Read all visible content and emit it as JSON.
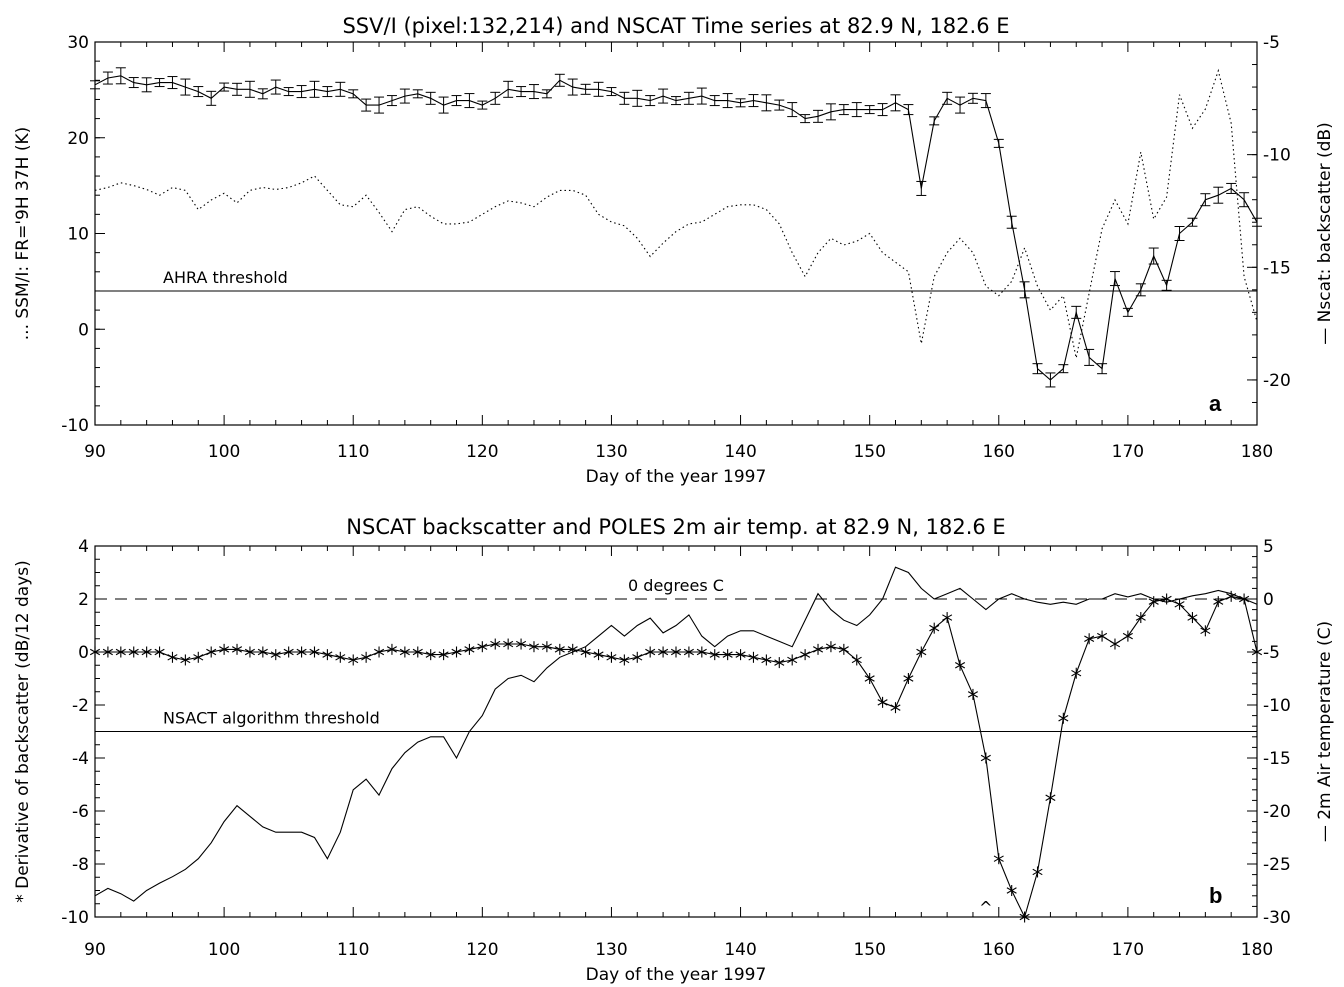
{
  "chart_data": [
    {
      "type": "line",
      "panel_letter": "a",
      "title": "SSV/I (pixel:132,214) and NSCAT Time series at 82.9 N, 182.6 E",
      "xlabel": "Day of the year 1997",
      "ylabel_left": "... SSM/I: FR='9H 37H (K)",
      "ylabel_right": "— Nscat: backscatter (dB)",
      "xlim": [
        90,
        180
      ],
      "ylim_left": [
        -10,
        30
      ],
      "ylim_right": [
        -22,
        -5
      ],
      "x_ticks": [
        "90",
        "100",
        "110",
        "120",
        "130",
        "140",
        "150",
        "160",
        "170",
        "180"
      ],
      "y_ticks_left": [
        "-10",
        "0",
        "10",
        "20",
        "30"
      ],
      "y_ticks_right": [
        "-20",
        "-15",
        "-10",
        "-5"
      ],
      "annotations": [
        {
          "text": "AHRA threshold",
          "y": 4.0
        }
      ],
      "series": [
        {
          "axis": "left",
          "style": "dotted",
          "x": [
            90,
            91,
            92,
            93,
            94,
            95,
            96,
            97,
            98,
            99,
            100,
            101,
            102,
            103,
            104,
            105,
            106,
            107,
            108,
            109,
            110,
            111,
            112,
            113,
            114,
            115,
            116,
            117,
            118,
            119,
            120,
            121,
            122,
            123,
            124,
            125,
            126,
            127,
            128,
            129,
            130,
            131,
            132,
            133,
            134,
            135,
            136,
            137,
            138,
            139,
            140,
            141,
            142,
            143,
            144,
            145,
            146,
            147,
            148,
            149,
            150,
            151,
            152,
            153,
            154,
            155,
            156,
            157,
            158,
            159,
            160,
            161,
            162,
            163,
            164,
            165,
            166,
            167,
            168,
            169,
            170,
            171,
            172,
            173,
            174,
            175,
            176,
            177,
            178,
            179,
            180
          ],
          "values": [
            14.5,
            14.8,
            15.3,
            15.0,
            14.6,
            14.0,
            14.8,
            14.5,
            12.5,
            13.5,
            14.2,
            13.2,
            14.5,
            14.8,
            14.6,
            14.8,
            15.3,
            16.0,
            14.5,
            13.0,
            12.8,
            14.0,
            12.2,
            10.2,
            12.5,
            12.8,
            11.8,
            11.0,
            11.0,
            11.2,
            12.0,
            12.8,
            13.4,
            13.2,
            12.8,
            13.8,
            14.5,
            14.5,
            14.0,
            12.0,
            11.2,
            10.8,
            9.5,
            7.6,
            9.0,
            10.2,
            11.0,
            11.2,
            12.0,
            12.8,
            13.0,
            13.0,
            12.5,
            11.0,
            8.0,
            5.5,
            8.0,
            9.5,
            8.8,
            9.2,
            10.0,
            8.0,
            7.0,
            6.0,
            -1.5,
            5.5,
            8.0,
            9.5,
            8.0,
            4.5,
            3.5,
            5.0,
            8.5,
            4.5,
            2.0,
            3.5,
            -3.0,
            3.8,
            10.5,
            13.5,
            11.0,
            18.5,
            11.5,
            13.8,
            24.5,
            21.0,
            23.0,
            27.0,
            21.5,
            5.5,
            0.8
          ]
        },
        {
          "axis": "right",
          "style": "solid-errorbars",
          "x": [
            90,
            91,
            92,
            93,
            94,
            95,
            96,
            97,
            98,
            99,
            100,
            101,
            102,
            103,
            104,
            105,
            106,
            107,
            108,
            109,
            110,
            111,
            112,
            113,
            114,
            115,
            116,
            117,
            118,
            119,
            120,
            121,
            122,
            123,
            124,
            125,
            126,
            127,
            128,
            129,
            130,
            131,
            132,
            133,
            134,
            135,
            136,
            137,
            138,
            139,
            140,
            141,
            142,
            143,
            144,
            145,
            146,
            147,
            148,
            149,
            150,
            151,
            152,
            153,
            154,
            155,
            156,
            157,
            158,
            159,
            160,
            161,
            162,
            163,
            164,
            165,
            166,
            167,
            168,
            169,
            170,
            171,
            172,
            173,
            174,
            175,
            176,
            177,
            178,
            179,
            180
          ],
          "values": [
            -6.9,
            -6.6,
            -6.5,
            -6.8,
            -6.9,
            -6.8,
            -6.8,
            -7.0,
            -7.2,
            -7.5,
            -7.0,
            -7.1,
            -7.1,
            -7.3,
            -7.0,
            -7.2,
            -7.2,
            -7.1,
            -7.2,
            -7.1,
            -7.3,
            -7.8,
            -7.8,
            -7.6,
            -7.4,
            -7.3,
            -7.5,
            -7.8,
            -7.6,
            -7.6,
            -7.8,
            -7.5,
            -7.1,
            -7.2,
            -7.2,
            -7.3,
            -6.7,
            -7.0,
            -7.1,
            -7.1,
            -7.2,
            -7.5,
            -7.5,
            -7.6,
            -7.4,
            -7.6,
            -7.5,
            -7.4,
            -7.6,
            -7.6,
            -7.7,
            -7.6,
            -7.7,
            -7.8,
            -8.0,
            -8.4,
            -8.3,
            -8.1,
            -8.0,
            -8.0,
            -8.0,
            -8.0,
            -7.7,
            -8.0,
            -11.5,
            -8.5,
            -7.5,
            -7.8,
            -7.5,
            -7.6,
            -9.5,
            -13.0,
            -16.0,
            -19.5,
            -20.0,
            -19.5,
            -17.0,
            -19.0,
            -19.5,
            -15.5,
            -17.0,
            -16.0,
            -14.5,
            -15.8,
            -13.5,
            -13.0,
            -12.0,
            -11.8,
            -11.5,
            -12.0,
            -13.0
          ]
        }
      ]
    },
    {
      "type": "line",
      "panel_letter": "b",
      "title": "NSCAT backscatter and POLES 2m air temp. at 82.9 N, 182.6 E",
      "xlabel": "Day of the year 1997",
      "ylabel_left": "* Derivative of backscatter (dB/12 days)",
      "ylabel_right": "— 2m Air temperature (C)",
      "xlim": [
        90,
        180
      ],
      "ylim_left": [
        -10,
        4
      ],
      "ylim_right": [
        -30,
        5
      ],
      "x_ticks": [
        "90",
        "100",
        "110",
        "120",
        "130",
        "140",
        "150",
        "160",
        "170",
        "180"
      ],
      "y_ticks_left": [
        "-10",
        "-8",
        "-6",
        "-4",
        "-2",
        "0",
        "2",
        "4"
      ],
      "y_ticks_right": [
        "-30",
        "-25",
        "-20",
        "-15",
        "-10",
        "-5",
        "0",
        "5"
      ],
      "annotations": [
        {
          "text": "0 degrees C",
          "y_right": 0
        },
        {
          "text": "NSACT algorithm threshold",
          "y_left": -3.0
        },
        {
          "text": "^",
          "x": 159
        }
      ],
      "series": [
        {
          "axis": "right",
          "style": "solid",
          "x": [
            90,
            91,
            92,
            93,
            94,
            95,
            96,
            97,
            98,
            99,
            100,
            101,
            102,
            103,
            104,
            105,
            106,
            107,
            108,
            109,
            110,
            111,
            112,
            113,
            114,
            115,
            116,
            117,
            118,
            119,
            120,
            121,
            122,
            123,
            124,
            125,
            126,
            127,
            128,
            129,
            130,
            131,
            132,
            133,
            134,
            135,
            136,
            137,
            138,
            139,
            140,
            141,
            142,
            143,
            144,
            145,
            146,
            147,
            148,
            149,
            150,
            151,
            152,
            153,
            154,
            155,
            156,
            157,
            158,
            159,
            160,
            161,
            162,
            163,
            164,
            165,
            166,
            167,
            168,
            169,
            170,
            171,
            172,
            173,
            174,
            175,
            176,
            177,
            178,
            179,
            180
          ],
          "values": [
            -28.0,
            -27.3,
            -27.8,
            -28.5,
            -27.5,
            -26.8,
            -26.2,
            -25.5,
            -24.5,
            -23.0,
            -21.0,
            -19.5,
            -20.5,
            -21.5,
            -22.0,
            -22.0,
            -22.0,
            -22.5,
            -24.5,
            -22.0,
            -18.0,
            -17.0,
            -18.5,
            -16.0,
            -14.5,
            -13.5,
            -13.0,
            -13.0,
            -15.0,
            -12.5,
            -11.0,
            -8.5,
            -7.5,
            -7.2,
            -7.8,
            -6.5,
            -5.5,
            -5.0,
            -4.5,
            -3.5,
            -2.5,
            -3.5,
            -2.5,
            -1.8,
            -3.2,
            -2.5,
            -1.5,
            -3.5,
            -4.5,
            -3.5,
            -3.0,
            -3.0,
            -3.5,
            -4.0,
            -4.5,
            -2.0,
            0.5,
            -1.0,
            -2.0,
            -2.5,
            -1.5,
            0.0,
            3.0,
            2.5,
            1.0,
            0.0,
            0.5,
            1.0,
            0.0,
            -1.0,
            0.0,
            0.5,
            0.0,
            -0.3,
            -0.5,
            -0.3,
            -0.5,
            0.0,
            0.0,
            0.5,
            0.2,
            0.5,
            0.0,
            -0.3,
            0.0,
            0.3,
            0.5,
            0.8,
            0.5,
            0.0,
            -0.5
          ]
        },
        {
          "axis": "left",
          "style": "asterisk-markers",
          "x": [
            90,
            91,
            92,
            93,
            94,
            95,
            96,
            97,
            98,
            99,
            100,
            101,
            102,
            103,
            104,
            105,
            106,
            107,
            108,
            109,
            110,
            111,
            112,
            113,
            114,
            115,
            116,
            117,
            118,
            119,
            120,
            121,
            122,
            123,
            124,
            125,
            126,
            127,
            128,
            129,
            130,
            131,
            132,
            133,
            134,
            135,
            136,
            137,
            138,
            139,
            140,
            141,
            142,
            143,
            144,
            145,
            146,
            147,
            148,
            149,
            150,
            151,
            152,
            153,
            154,
            155,
            156,
            157,
            158,
            159,
            160,
            161,
            162,
            163,
            164,
            165,
            166,
            167,
            168,
            169,
            170,
            171,
            172,
            173,
            174,
            175,
            176,
            177,
            178,
            179,
            180
          ],
          "values": [
            0.0,
            0.0,
            0.0,
            0.0,
            0.0,
            0.0,
            -0.2,
            -0.3,
            -0.2,
            0.0,
            0.1,
            0.1,
            0.0,
            0.0,
            -0.1,
            0.0,
            0.0,
            0.0,
            -0.1,
            -0.2,
            -0.3,
            -0.2,
            0.0,
            0.1,
            0.0,
            0.0,
            -0.1,
            -0.1,
            0.0,
            0.1,
            0.2,
            0.3,
            0.3,
            0.3,
            0.2,
            0.2,
            0.1,
            0.1,
            0.0,
            -0.1,
            -0.2,
            -0.3,
            -0.2,
            0.0,
            0.0,
            0.0,
            0.0,
            0.0,
            -0.1,
            -0.1,
            -0.1,
            -0.2,
            -0.3,
            -0.4,
            -0.3,
            -0.1,
            0.1,
            0.2,
            0.1,
            -0.3,
            -1.0,
            -1.9,
            -2.1,
            -1.0,
            0.0,
            0.9,
            1.3,
            -0.5,
            -1.6,
            -4.0,
            -7.8,
            -9.0,
            -10.0,
            -8.3,
            -5.5,
            -2.5,
            -0.8,
            0.5,
            0.6,
            0.3,
            0.6,
            1.3,
            1.9,
            2.0,
            1.8,
            1.3,
            0.8,
            1.9,
            2.1,
            2.0,
            0.0
          ]
        }
      ]
    }
  ]
}
